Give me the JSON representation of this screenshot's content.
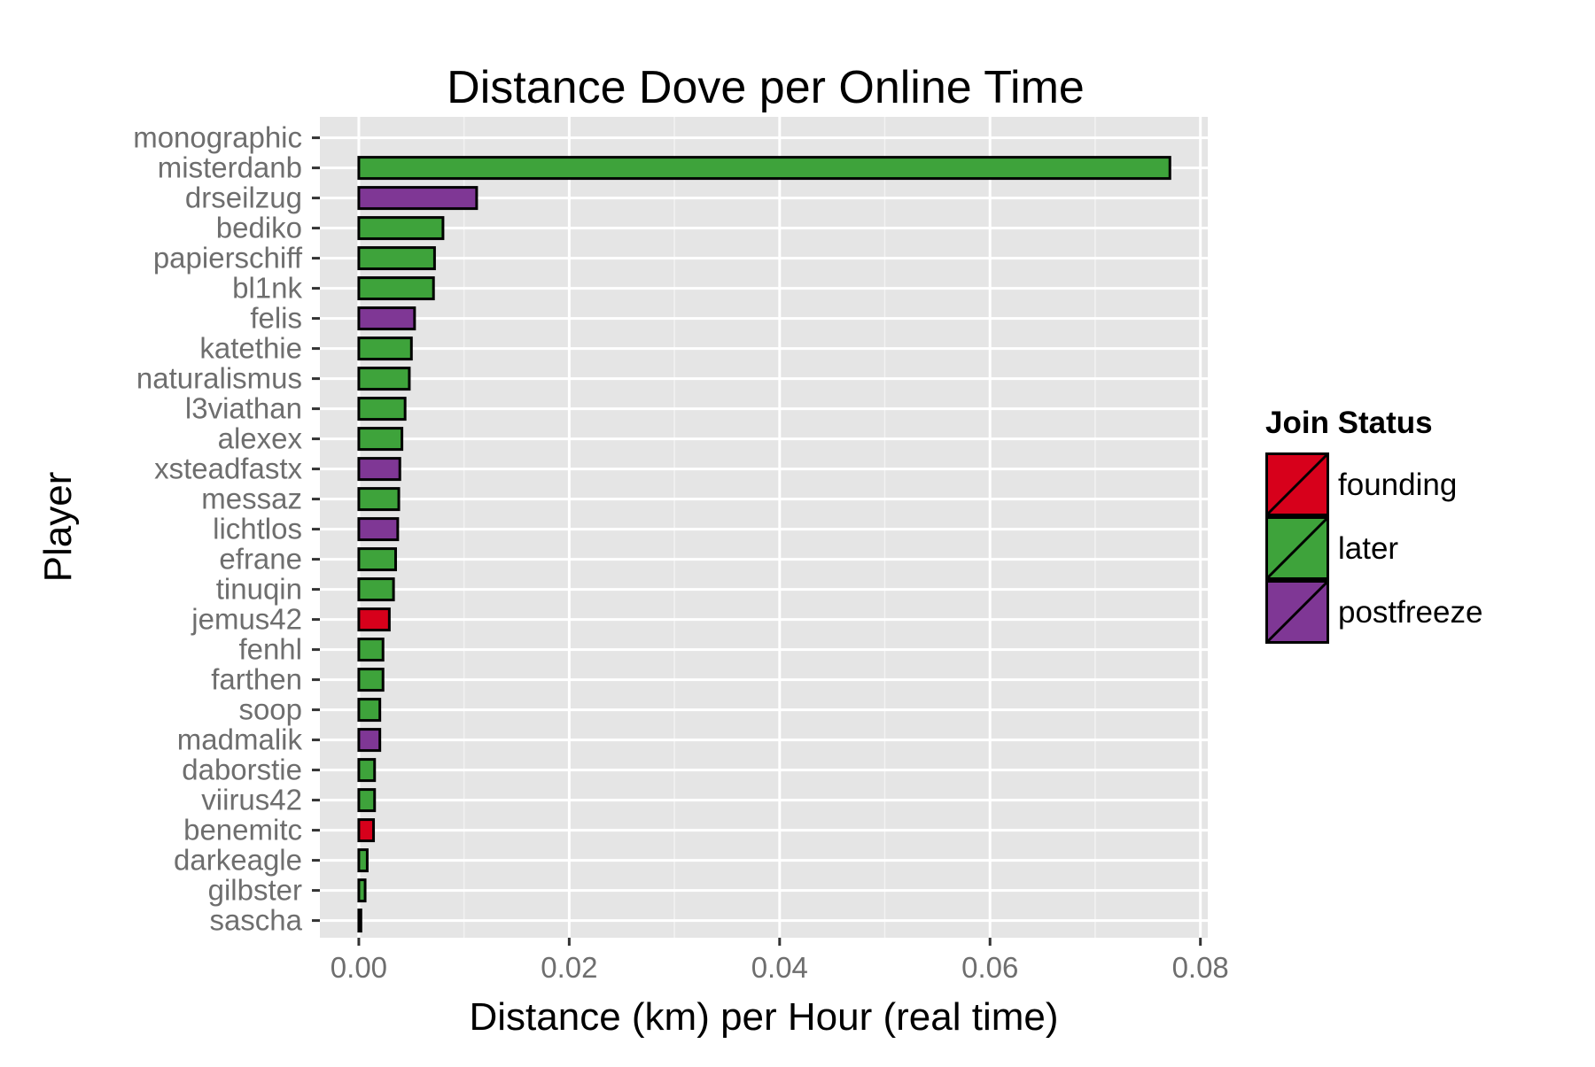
{
  "chart_data": {
    "type": "bar",
    "orientation": "horizontal",
    "title": "Distance Dove per Online Time",
    "xlabel": "Distance (km) per Hour (real time)",
    "ylabel": "Player",
    "xlim": [
      -0.0037,
      0.0807
    ],
    "xticks": [
      "0.00",
      "0.02",
      "0.04",
      "0.06",
      "0.08"
    ],
    "xtick_values": [
      0,
      0.02,
      0.04,
      0.06,
      0.08
    ],
    "grid": true,
    "legend": {
      "title": "Join Status",
      "position": "right",
      "entries": [
        {
          "label": "founding",
          "color": "#d7001b"
        },
        {
          "label": "later",
          "color": "#3ea33b"
        },
        {
          "label": "postfreeze",
          "color": "#7f3795"
        }
      ]
    },
    "categories": [
      "monographic",
      "misterdanb",
      "drseilzug",
      "bediko",
      "papierschiff",
      "bl1nk",
      "felis",
      "katethie",
      "naturalismus",
      "l3viathan",
      "alexex",
      "xsteadfastx",
      "messaz",
      "lichtlos",
      "efrane",
      "tinuqin",
      "jemus42",
      "fenhl",
      "farthen",
      "soop",
      "madmalik",
      "daborstie",
      "viirus42",
      "benemitc",
      "darkeagle",
      "gilbster",
      "sascha"
    ],
    "values": [
      0,
      0.0771,
      0.0112,
      0.008,
      0.0072,
      0.0071,
      0.0053,
      0.005,
      0.0048,
      0.0044,
      0.0041,
      0.0039,
      0.0038,
      0.0037,
      0.0035,
      0.0033,
      0.0029,
      0.0023,
      0.0023,
      0.002,
      0.002,
      0.0015,
      0.0015,
      0.0014,
      0.0008,
      0.0006,
      0.0002
    ],
    "groups": [
      "later",
      "later",
      "postfreeze",
      "later",
      "later",
      "later",
      "postfreeze",
      "later",
      "later",
      "later",
      "later",
      "postfreeze",
      "later",
      "postfreeze",
      "later",
      "later",
      "founding",
      "later",
      "later",
      "later",
      "postfreeze",
      "later",
      "later",
      "founding",
      "later",
      "later",
      "later"
    ]
  }
}
